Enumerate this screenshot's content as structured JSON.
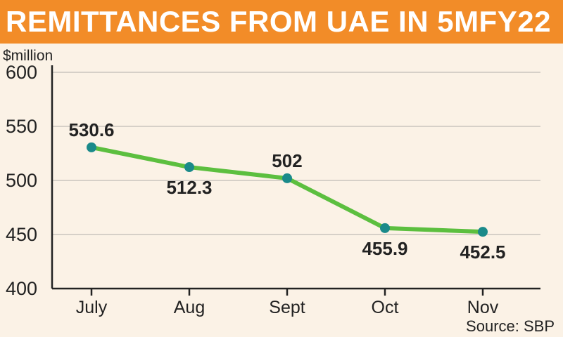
{
  "header": {
    "title": "REMITTANCES FROM UAE IN 5MFY22"
  },
  "source": "Source: SBP",
  "colors": {
    "title_bg": "#f28c28",
    "background": "#fbf2e6",
    "line": "#5cbf3f",
    "marker": "#1a8a8a",
    "grid": "#c9c4bd",
    "axis": "#222222"
  },
  "chart_data": {
    "type": "line",
    "title": "REMITTANCES FROM UAE IN 5MFY22",
    "xlabel": "",
    "ylabel": "$million",
    "categories": [
      "July",
      "Aug",
      "Sept",
      "Oct",
      "Nov"
    ],
    "series": [
      {
        "values": [
          530.6,
          512.3,
          502,
          455.9,
          452.5
        ]
      }
    ],
    "data_labels": [
      "530.6",
      "512.3",
      "502",
      "455.9",
      "452.5"
    ],
    "data_label_placement": [
      "above",
      "below",
      "above",
      "below",
      "below"
    ],
    "ylim": [
      400,
      600
    ],
    "yticks": [
      400,
      450,
      500,
      550,
      600
    ],
    "grid": true,
    "legend": "none"
  }
}
